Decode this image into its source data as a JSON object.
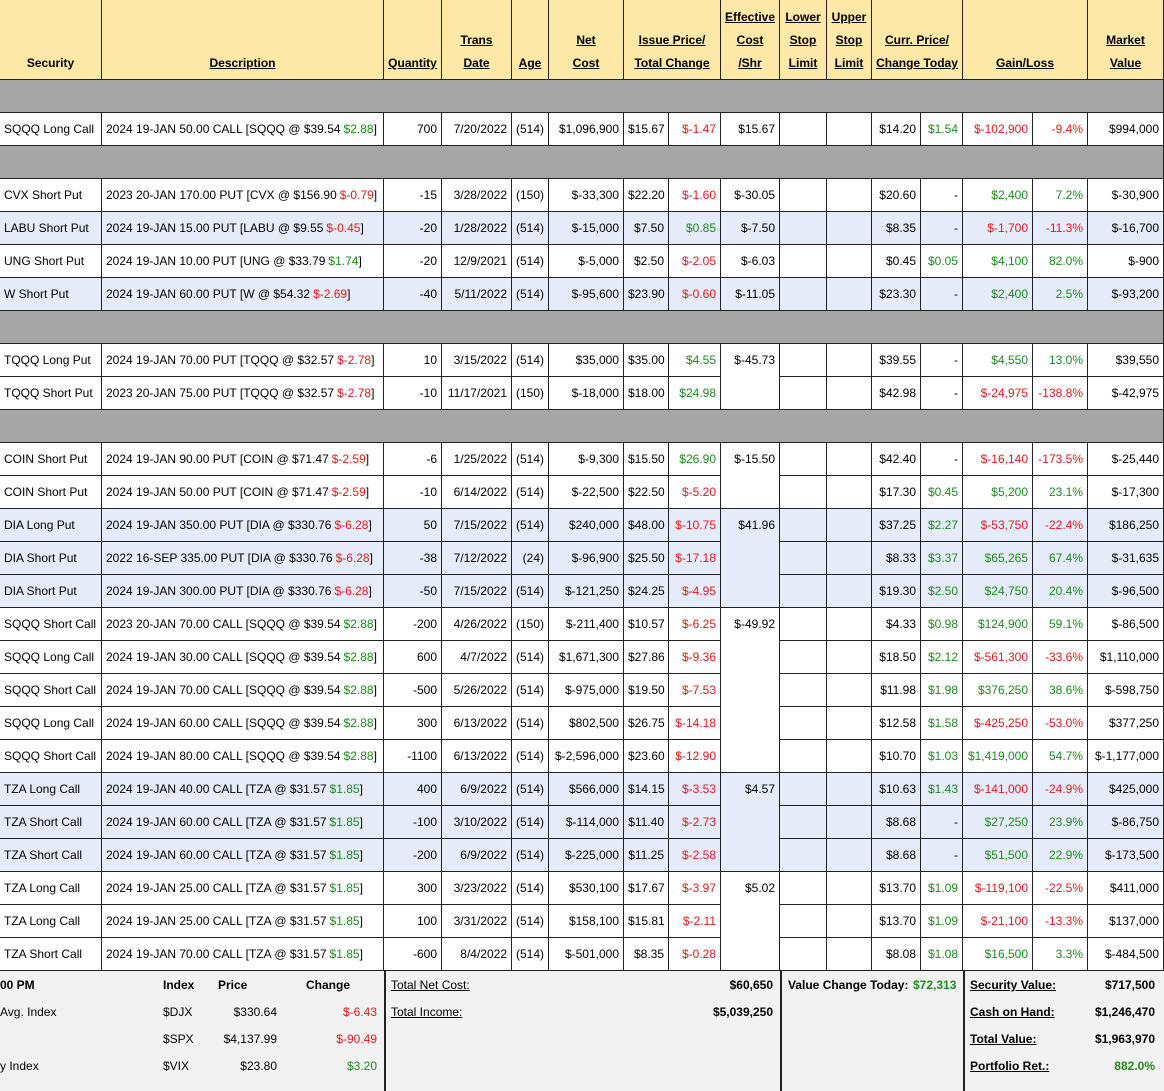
{
  "header": [
    [
      "Security"
    ],
    [
      "Description"
    ],
    [
      "Quantity"
    ],
    [
      "Trans",
      "Date"
    ],
    [
      "Age"
    ],
    [
      "Net",
      "Cost"
    ],
    [
      "Issue Price/",
      "Total Change"
    ],
    [
      "Effective",
      "Cost",
      "/Shr"
    ],
    [
      "Lower",
      "Stop",
      "Limit"
    ],
    [
      "Upper",
      "Stop",
      "Limit"
    ],
    [
      "Curr. Price/",
      "Change Today"
    ],
    [
      "Gain/Loss"
    ],
    [
      "Market",
      "Value"
    ]
  ],
  "groups": [
    [
      [
        "SQQQ Long Call",
        "2024 19-JAN 50.00 CALL [SQQQ @ $39.54",
        "$2.88",
        "]",
        "700",
        "7/20/2022",
        "(514)",
        "$1,096,900",
        "$15.67",
        "$-1.47",
        "$15.67",
        "$14.20",
        "$1.54",
        "$-102,900",
        "-9.4%",
        "$994,000"
      ]
    ],
    [
      [
        "CVX Short Put",
        "2023 20-JAN 170.00 PUT [CVX @ $156.90",
        "$-0.79",
        "]",
        "-15",
        "3/28/2022",
        "(150)",
        "$-33,300",
        "$22.20",
        "$-1.60",
        "$-30.05",
        "$20.60",
        "-",
        "$2,400",
        "7.2%",
        "$-30,900"
      ],
      [
        "LABU Short Put",
        "2024 19-JAN 15.00 PUT [LABU @ $9.55",
        "$-0.45",
        "]",
        "-20",
        "1/28/2022",
        "(514)",
        "$-15,000",
        "$7.50",
        "$0.85",
        "$-7.50",
        "$8.35",
        "-",
        "$-1,700",
        "-11.3%",
        "$-16,700"
      ],
      [
        "UNG Short Put",
        "2024 19-JAN 10.00 PUT [UNG @ $33.79",
        "$1.74",
        "]",
        "-20",
        "12/9/2021",
        "(514)",
        "$-5,000",
        "$2.50",
        "$-2.05",
        "$-6.03",
        "$0.45",
        "$0.05",
        "$4,100",
        "82.0%",
        "$-900"
      ],
      [
        "W Short Put",
        "2024 19-JAN 60.00 PUT [W @ $54.32",
        "$-2.69",
        "]",
        "-40",
        "5/11/2022",
        "(514)",
        "$-95,600",
        "$23.90",
        "$-0.60",
        "$-11.05",
        "$23.30",
        "-",
        "$2,400",
        "2.5%",
        "$-93,200"
      ]
    ],
    [
      [
        "TQQQ Long Put",
        "2024 19-JAN 70.00 PUT [TQQQ @ $32.57",
        "$-2.78",
        "]",
        "10",
        "3/15/2022",
        "(514)",
        "$35,000",
        "$35.00",
        "$4.55",
        "$-45.73",
        "$39.55",
        "-",
        "$4,550",
        "13.0%",
        "$39,550"
      ],
      [
        "TQQQ Short Put",
        "2023 20-JAN 75.00 PUT [TQQQ @ $32.57",
        "$-2.78",
        "]",
        "-10",
        "11/17/2021",
        "(150)",
        "$-18,000",
        "$18.00",
        "$24.98",
        null,
        "$42.98",
        "-",
        "$-24,975",
        "-138.8%",
        "$-42,975"
      ]
    ],
    [
      [
        "COIN Short Put",
        "2024 19-JAN 90.00 PUT [COIN @ $71.47",
        "$-2.59",
        "]",
        "-6",
        "1/25/2022",
        "(514)",
        "$-9,300",
        "$15.50",
        "$26.90",
        "$-15.50",
        "$42.40",
        "-",
        "$-16,140",
        "-173.5%",
        "$-25,440"
      ],
      [
        "COIN Short Put",
        "2024 19-JAN 50.00 PUT [COIN @ $71.47",
        "$-2.59",
        "]",
        "-10",
        "6/14/2022",
        "(514)",
        "$-22,500",
        "$22.50",
        "$-5.20",
        null,
        "$17.30",
        "$0.45",
        "$5,200",
        "23.1%",
        "$-17,300"
      ],
      [
        "DIA Long Put",
        "2024 19-JAN 350.00 PUT [DIA @ $330.76",
        "$-6.28",
        "]",
        "50",
        "7/15/2022",
        "(514)",
        "$240,000",
        "$48.00",
        "$-10.75",
        "$41.96",
        "$37.25",
        "$2.27",
        "$-53,750",
        "-22.4%",
        "$186,250"
      ],
      [
        "DIA Short Put",
        "2022 16-SEP 335.00 PUT [DIA @ $330.76",
        "$-6.28",
        "]",
        "-38",
        "7/12/2022",
        "(24)",
        "$-96,900",
        "$25.50",
        "$-17.18",
        null,
        "$8.33",
        "$3.37",
        "$65,265",
        "67.4%",
        "$-31,635"
      ],
      [
        "DIA Short Put",
        "2024 19-JAN 300.00 PUT [DIA @ $330.76",
        "$-6.28",
        "]",
        "-50",
        "7/15/2022",
        "(514)",
        "$-121,250",
        "$24.25",
        "$-4.95",
        null,
        "$19.30",
        "$2.50",
        "$24,750",
        "20.4%",
        "$-96,500"
      ],
      [
        "SQQQ Short Call",
        "2023 20-JAN 70.00 CALL [SQQQ @ $39.54",
        "$2.88",
        "]",
        "-200",
        "4/26/2022",
        "(150)",
        "$-211,400",
        "$10.57",
        "$-6.25",
        "$-49.92",
        "$4.33",
        "$0.98",
        "$124,900",
        "59.1%",
        "$-86,500"
      ],
      [
        "SQQQ Long Call",
        "2024 19-JAN 30.00 CALL [SQQQ @ $39.54",
        "$2.88",
        "]",
        "600",
        "4/7/2022",
        "(514)",
        "$1,671,300",
        "$27.86",
        "$-9.36",
        null,
        "$18.50",
        "$2.12",
        "$-561,300",
        "-33.6%",
        "$1,110,000"
      ],
      [
        "SQQQ Short Call",
        "2024 19-JAN 70.00 CALL [SQQQ @ $39.54",
        "$2.88",
        "]",
        "-500",
        "5/26/2022",
        "(514)",
        "$-975,000",
        "$19.50",
        "$-7.53",
        null,
        "$11.98",
        "$1.98",
        "$376,250",
        "38.6%",
        "$-598,750"
      ],
      [
        "SQQQ Long Call",
        "2024 19-JAN 60.00 CALL [SQQQ @ $39.54",
        "$2.88",
        "]",
        "300",
        "6/13/2022",
        "(514)",
        "$802,500",
        "$26.75",
        "$-14.18",
        null,
        "$12.58",
        "$1.58",
        "$-425,250",
        "-53.0%",
        "$377,250"
      ],
      [
        "SQQQ Short Call",
        "2024 19-JAN 80.00 CALL [SQQQ @ $39.54",
        "$2.88",
        "]",
        "-1100",
        "6/13/2022",
        "(514)",
        "$-2,596,000",
        "$23.60",
        "$-12.90",
        null,
        "$10.70",
        "$1.03",
        "$1,419,000",
        "54.7%",
        "$-1,177,000"
      ],
      [
        "TZA Long Call",
        "2024 19-JAN 40.00 CALL [TZA @ $31.57",
        "$1.85",
        "]",
        "400",
        "6/9/2022",
        "(514)",
        "$566,000",
        "$14.15",
        "$-3.53",
        "$4.57",
        "$10.63",
        "$1.43",
        "$-141,000",
        "-24.9%",
        "$425,000"
      ],
      [
        "TZA Short Call",
        "2024 19-JAN 60.00 CALL [TZA @ $31.57",
        "$1.85",
        "]",
        "-100",
        "3/10/2022",
        "(514)",
        "$-114,000",
        "$11.40",
        "$-2.73",
        null,
        "$8.68",
        "-",
        "$27,250",
        "23.9%",
        "$-86,750"
      ],
      [
        "TZA Short Call",
        "2024 19-JAN 60.00 CALL [TZA @ $31.57",
        "$1.85",
        "]",
        "-200",
        "6/9/2022",
        "(514)",
        "$-225,000",
        "$11.25",
        "$-2.58",
        null,
        "$8.68",
        "-",
        "$51,500",
        "22.9%",
        "$-173,500"
      ],
      [
        "TZA Long Call",
        "2024 19-JAN 25.00 CALL [TZA @ $31.57",
        "$1.85",
        "]",
        "300",
        "3/23/2022",
        "(514)",
        "$530,100",
        "$17.67",
        "$-3.97",
        "$5.02",
        "$13.70",
        "$1.09",
        "$-119,100",
        "-22.5%",
        "$411,000"
      ],
      [
        "TZA Long Call",
        "2024 19-JAN 25.00 CALL [TZA @ $31.57",
        "$1.85",
        "]",
        "100",
        "3/31/2022",
        "(514)",
        "$158,100",
        "$15.81",
        "$-2.11",
        null,
        "$13.70",
        "$1.09",
        "$-21,100",
        "-13.3%",
        "$137,000"
      ],
      [
        "TZA Short Call",
        "2024 19-JAN 70.00 CALL [TZA @ $31.57",
        "$1.85",
        "]",
        "-600",
        "8/4/2022",
        "(514)",
        "$-501,000",
        "$8.35",
        "$-0.28",
        null,
        "$8.08",
        "$1.08",
        "$16,500",
        "3.3%",
        "$-484,500"
      ]
    ]
  ],
  "footer": {
    "time": "00 PM",
    "index_header": [
      "Index",
      "Price",
      "Change"
    ],
    "indices": [
      {
        "name": "Avg. Index",
        "symbol": "$DJX",
        "price": "$330.64",
        "change": "$-6.43"
      },
      {
        "symbol": "$SPX",
        "price": "$4,137.99",
        "change": "$-90.49"
      },
      {
        "name": "y Index",
        "symbol": "$VIX",
        "price": "$23.80",
        "change": "$3.20"
      }
    ],
    "totals": [
      {
        "label": "Total Net Cost:",
        "value": "$60,650"
      },
      {
        "label": "Total Income:",
        "value": "$5,039,250"
      }
    ],
    "value_change": {
      "label": "Value Change Today:",
      "value": "$72,313"
    },
    "summary": [
      {
        "label": "Security Value:",
        "value": "$717,500"
      },
      {
        "label": "Cash on Hand:",
        "value": "$1,246,470"
      },
      {
        "label": "Total Value:",
        "value": "$1,963,970"
      },
      {
        "label": "Portfolio Ret.:",
        "value": "882.0%"
      }
    ]
  }
}
